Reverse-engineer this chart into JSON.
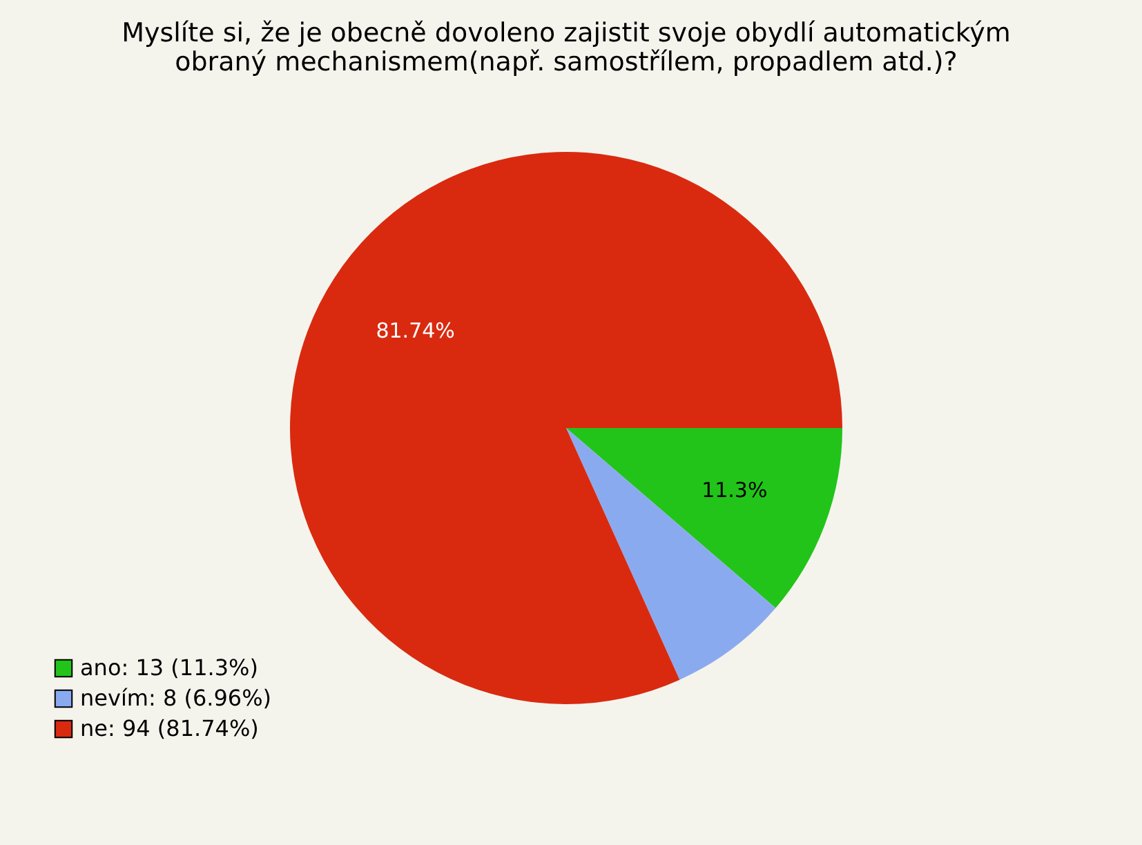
{
  "chart_data": {
    "type": "pie",
    "title": "Myslíte si, že je obecně dovoleno zajistit svoje obydlí automatickým obraný mechanismem(např. samostřílem, propadlem atd.)?",
    "categories": [
      "ano: 13 (11.3%)",
      "nevím: 8 (6.96%)",
      "ne: 94 (81.74%)"
    ],
    "values": [
      11.3,
      6.96,
      81.74
    ],
    "colors": [
      "#22c41a",
      "#8aaaf0",
      "#d92a10"
    ],
    "value_labels": [
      "11.3%",
      null,
      "81.74%"
    ],
    "legend": "bottom left"
  }
}
